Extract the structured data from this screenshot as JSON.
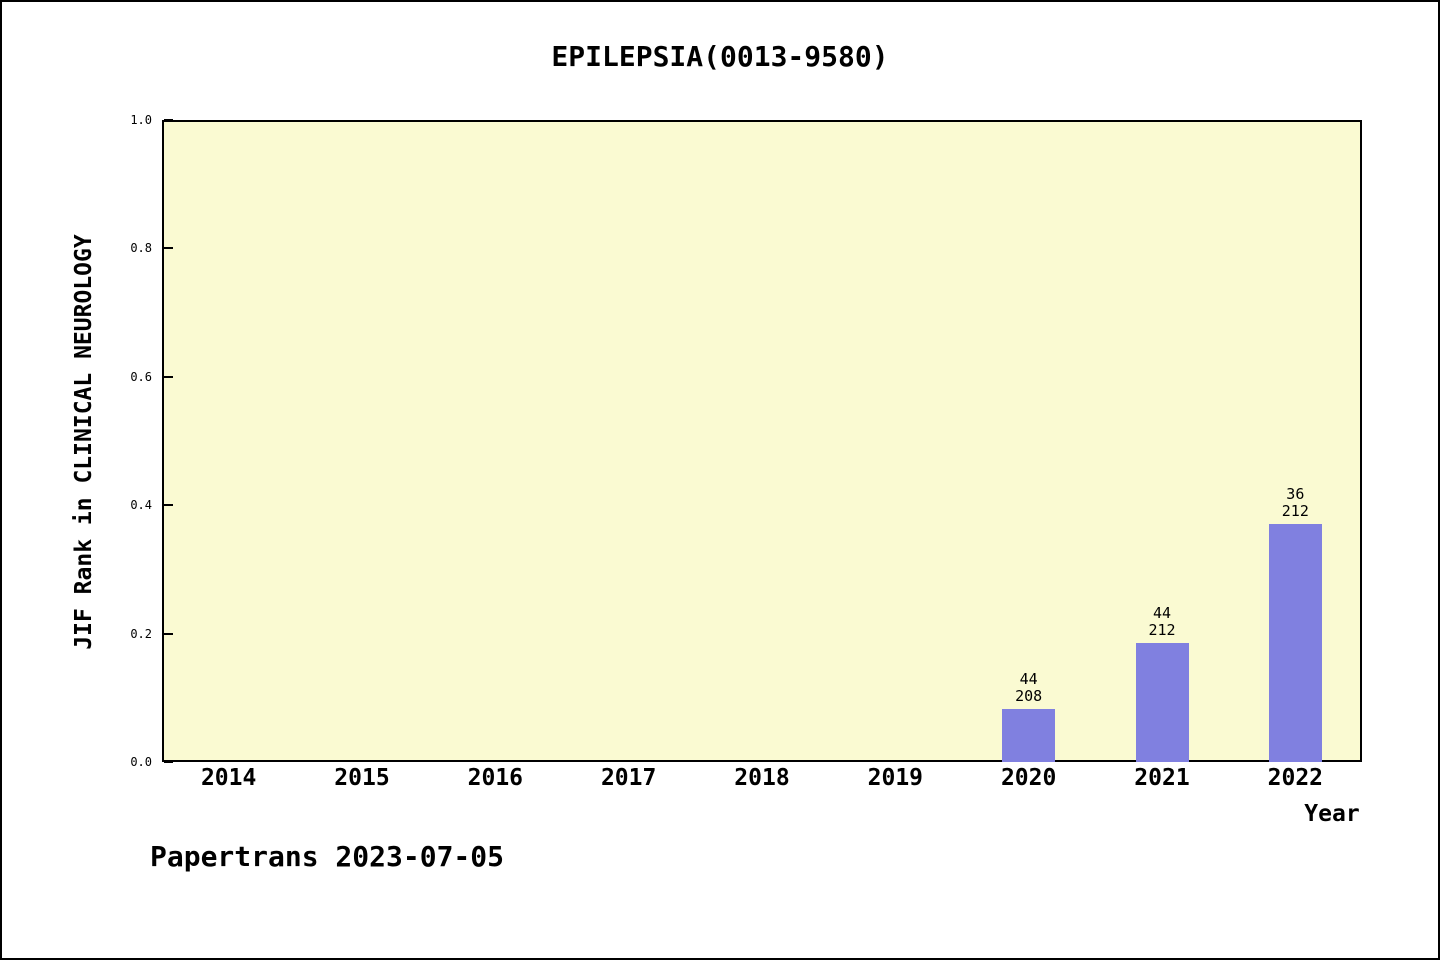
{
  "chart_data": {
    "type": "bar",
    "title": "EPILEPSIA(0013-9580)",
    "xlabel": "Year",
    "ylabel": "JIF Rank in CLINICAL NEUROLOGY",
    "ylim": [
      0.0,
      1.0
    ],
    "grid": false,
    "legend": null,
    "yticks": [
      {
        "value": 0.0,
        "label": "0.0"
      },
      {
        "value": 0.2,
        "label": "0.2"
      },
      {
        "value": 0.4,
        "label": "0.4"
      },
      {
        "value": 0.6,
        "label": "0.6"
      },
      {
        "value": 0.8,
        "label": "0.8"
      },
      {
        "value": 1.0,
        "label": "1.0"
      }
    ],
    "categories": [
      "2014",
      "2015",
      "2016",
      "2017",
      "2018",
      "2019",
      "2020",
      "2021",
      "2022"
    ],
    "bars": [
      {
        "category": "2020",
        "label_top": "44",
        "label_bottom": "208",
        "value": 0.083
      },
      {
        "category": "2021",
        "label_top": "44",
        "label_bottom": "212",
        "value": 0.185
      },
      {
        "category": "2022",
        "label_top": "36",
        "label_bottom": "212",
        "value": 0.371
      }
    ],
    "colors": {
      "bar": "#8080e0",
      "plot_bg": "#fafad2",
      "axis": "#000000",
      "text": "#000000"
    }
  },
  "footer": {
    "text": "Papertrans 2023-07-05"
  }
}
